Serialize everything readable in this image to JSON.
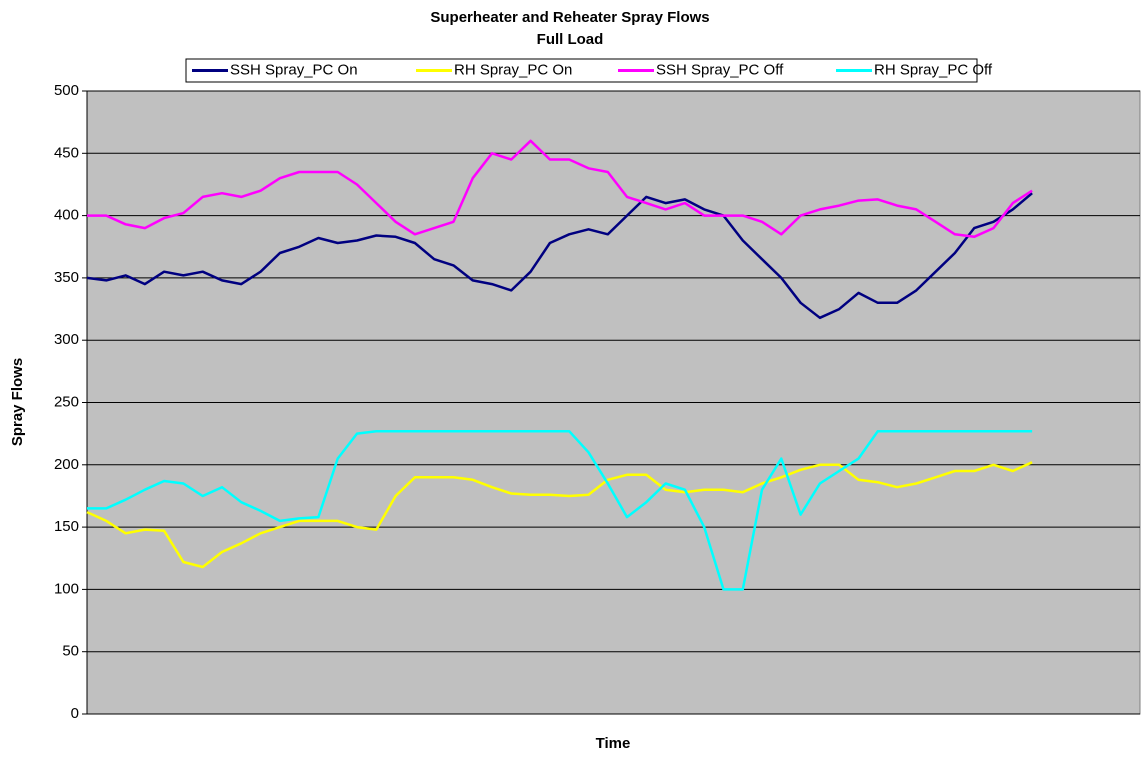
{
  "chart_data": {
    "type": "line",
    "title": "Superheater and Reheater Spray Flows",
    "subtitle": "Full  Load",
    "x_label": "Time",
    "y_label": "Spray Flows",
    "ylim": [
      0,
      500
    ],
    "yticks": [
      0,
      50,
      100,
      150,
      200,
      250,
      300,
      350,
      400,
      450,
      500
    ],
    "grid": true,
    "legend": "top",
    "background": "#c0c0c0",
    "series": [
      {
        "name": "SSH Spray_PC On",
        "color": "#000080",
        "values": [
          350,
          348,
          352,
          345,
          355,
          352,
          355,
          348,
          345,
          355,
          370,
          375,
          382,
          378,
          380,
          384,
          383,
          378,
          365,
          360,
          348,
          345,
          340,
          355,
          378,
          385,
          389,
          385,
          400,
          415,
          410,
          413,
          405,
          400,
          380,
          365,
          350,
          330,
          318,
          325,
          338,
          330,
          330,
          340,
          355,
          370,
          390,
          395,
          405,
          418
        ]
      },
      {
        "name": "RH Spray_PC On",
        "color": "#ffff00",
        "values": [
          162,
          155,
          145,
          148,
          147,
          122,
          118,
          130,
          137,
          145,
          150,
          155,
          155,
          155,
          150,
          148,
          175,
          190,
          190,
          190,
          188,
          182,
          177,
          176,
          176,
          175,
          176,
          188,
          192,
          192,
          180,
          178,
          180,
          180,
          178,
          185,
          190,
          196,
          200,
          200,
          188,
          186,
          182,
          185,
          190,
          195,
          195,
          200,
          195,
          202
        ]
      },
      {
        "name": "SSH Spray_PC Off",
        "color": "#ff00ff",
        "values": [
          400,
          400,
          393,
          390,
          398,
          402,
          415,
          418,
          415,
          420,
          430,
          435,
          435,
          435,
          425,
          410,
          395,
          385,
          390,
          395,
          430,
          450,
          445,
          460,
          445,
          445,
          438,
          435,
          415,
          410,
          405,
          410,
          400,
          400,
          400,
          395,
          385,
          400,
          405,
          408,
          412,
          413,
          408,
          405,
          395,
          385,
          383,
          390,
          410,
          420
        ]
      },
      {
        "name": "RH Spray_PC Off",
        "color": "#00ffff",
        "values": [
          165,
          165,
          172,
          180,
          187,
          185,
          175,
          182,
          170,
          163,
          155,
          157,
          158,
          205,
          225,
          227,
          227,
          227,
          227,
          227,
          227,
          227,
          227,
          227,
          227,
          227,
          210,
          185,
          158,
          170,
          185,
          180,
          150,
          100,
          100,
          180,
          205,
          160,
          185,
          195,
          205,
          227,
          227,
          227,
          227,
          227,
          227,
          227,
          227,
          227
        ]
      }
    ]
  }
}
